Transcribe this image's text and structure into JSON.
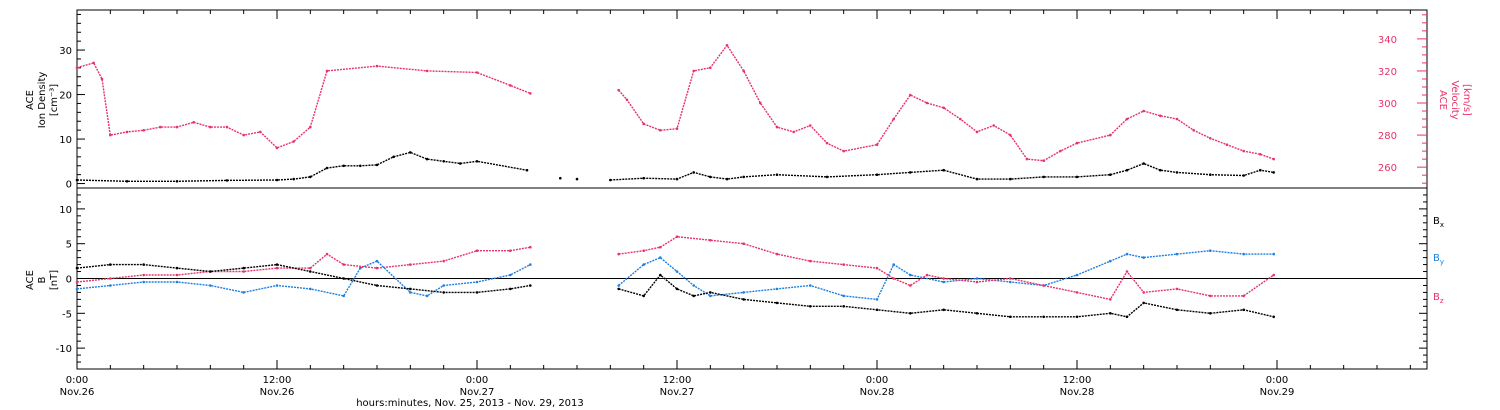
{
  "chart_data": [
    {
      "type": "scatter",
      "panel": "top",
      "ylabel_left": [
        "ACE",
        "Ion Density",
        "[cm⁻³]"
      ],
      "ylabel_right": [
        "ACE",
        "Velocity",
        "[km/s]"
      ],
      "ylim_left": [
        -1,
        39
      ],
      "ylim_right": [
        247,
        358
      ],
      "yticks_left": [
        0,
        10,
        20,
        30
      ],
      "yticks_right": [
        260,
        280,
        300,
        320,
        340
      ],
      "series": [
        {
          "axis": "left",
          "color": "#000000",
          "hours": [
            0,
            3,
            6,
            9,
            12,
            13,
            14,
            15,
            16,
            17,
            18,
            19,
            20,
            21,
            22,
            23,
            24,
            27,
            29,
            30,
            32,
            34,
            36,
            37,
            38,
            39,
            40,
            42,
            45,
            48,
            50,
            52,
            54,
            56,
            58,
            60,
            62,
            63,
            64,
            65,
            66,
            68,
            70,
            71,
            71.8
          ],
          "values": [
            0.8,
            0.5,
            0.5,
            0.7,
            0.8,
            1.0,
            1.5,
            3.5,
            4.0,
            4.0,
            4.2,
            6.0,
            7.0,
            5.5,
            5.0,
            4.5,
            5.0,
            3.0,
            1.2,
            1.0,
            0.8,
            1.2,
            1.0,
            2.5,
            1.5,
            1.0,
            1.5,
            2.0,
            1.5,
            2.0,
            2.5,
            3.0,
            1.0,
            1.0,
            1.5,
            1.5,
            2.0,
            3.0,
            4.5,
            3.0,
            2.5,
            2.0,
            1.8,
            3.0,
            2.5
          ]
        },
        {
          "axis": "right",
          "color": "#e8336a",
          "hours": [
            0,
            1,
            1.5,
            2,
            3,
            4,
            5,
            6,
            7,
            8,
            9,
            10,
            11,
            12,
            13,
            14,
            15,
            18,
            21,
            24,
            26,
            27.2,
            32.5,
            33,
            34,
            35,
            36,
            37,
            38,
            39,
            40,
            41,
            42,
            43,
            44,
            45,
            46,
            48,
            49,
            50,
            51,
            52,
            53,
            54,
            55,
            56,
            57,
            58,
            59,
            60,
            62,
            63,
            64,
            65,
            66,
            67,
            68,
            69,
            70,
            71,
            71.8
          ],
          "values": [
            322,
            325,
            315,
            280,
            282,
            283,
            285,
            285,
            288,
            285,
            285,
            280,
            282,
            272,
            276,
            285,
            320,
            323,
            320,
            319,
            311,
            306,
            308,
            302,
            287,
            283,
            284,
            320,
            322,
            336,
            320,
            300,
            285,
            282,
            286,
            275,
            270,
            274,
            290,
            305,
            300,
            297,
            290,
            282,
            286,
            280,
            265,
            264,
            270,
            275,
            280,
            290,
            295,
            292,
            290,
            283,
            278,
            274,
            270,
            268,
            265
          ]
        }
      ],
      "gaps_hours": [
        [
          27.2,
          32.5
        ]
      ]
    },
    {
      "type": "scatter",
      "panel": "bottom",
      "ylabel_left": [
        "ACE",
        "B",
        "[nT]"
      ],
      "ylim": [
        -13,
        13
      ],
      "yticks": [
        -10,
        -5,
        0,
        5,
        10
      ],
      "legend": [
        "Bx",
        "By",
        "Bz"
      ],
      "series": [
        {
          "name": "Bx",
          "color": "#000000",
          "hours": [
            0,
            2,
            4,
            6,
            8,
            10,
            12,
            14,
            16,
            18,
            20,
            22,
            24,
            26,
            27.2,
            32.5,
            34,
            35,
            36,
            37,
            38,
            40,
            42,
            44,
            46,
            48,
            50,
            52,
            54,
            56,
            58,
            60,
            62,
            63,
            64,
            66,
            68,
            70,
            71.8
          ],
          "values": [
            1.5,
            2.0,
            2.0,
            1.5,
            1.0,
            1.5,
            2.0,
            1.0,
            0.0,
            -1.0,
            -1.5,
            -2.0,
            -2.0,
            -1.5,
            -1.0,
            -1.5,
            -2.5,
            0.5,
            -1.5,
            -2.5,
            -2.0,
            -3.0,
            -3.5,
            -4.0,
            -4.0,
            -4.5,
            -5.0,
            -4.5,
            -5.0,
            -5.5,
            -5.5,
            -5.5,
            -5.0,
            -5.5,
            -3.5,
            -4.5,
            -5.0,
            -4.5,
            -5.5
          ]
        },
        {
          "name": "By",
          "color": "#1e7fe3",
          "hours": [
            0,
            2,
            4,
            6,
            8,
            10,
            12,
            14,
            16,
            17,
            18,
            20,
            21,
            22,
            24,
            26,
            27.2,
            32.5,
            34,
            35,
            36,
            37,
            38,
            40,
            42,
            44,
            46,
            48,
            49,
            50,
            52,
            54,
            56,
            58,
            60,
            62,
            63,
            64,
            66,
            68,
            70,
            71.8
          ],
          "values": [
            -1.5,
            -1.0,
            -0.5,
            -0.5,
            -1.0,
            -2.0,
            -1.0,
            -1.5,
            -2.5,
            1.5,
            2.5,
            -2.0,
            -2.5,
            -1.0,
            -0.5,
            0.5,
            2.0,
            -1.0,
            2.0,
            3.0,
            1.0,
            -1.0,
            -2.5,
            -2.0,
            -1.5,
            -1.0,
            -2.5,
            -3.0,
            2.0,
            0.5,
            -0.5,
            0.0,
            -0.5,
            -1.0,
            0.5,
            2.5,
            3.5,
            3.0,
            3.5,
            4.0,
            3.5,
            3.5
          ]
        },
        {
          "name": "Bz",
          "color": "#e8336a",
          "hours": [
            0,
            2,
            4,
            6,
            8,
            10,
            12,
            14,
            15,
            16,
            18,
            20,
            22,
            24,
            26,
            27.2,
            32.5,
            34,
            35,
            36,
            38,
            40,
            42,
            44,
            46,
            48,
            49,
            50,
            51,
            52,
            54,
            56,
            58,
            60,
            62,
            63,
            64,
            66,
            68,
            70,
            71.8
          ],
          "values": [
            -0.5,
            0.0,
            0.5,
            0.5,
            1.0,
            1.0,
            1.5,
            1.5,
            3.5,
            2.0,
            1.5,
            2.0,
            2.5,
            4.0,
            4.0,
            4.5,
            3.5,
            4.0,
            4.5,
            6.0,
            5.5,
            5.0,
            3.5,
            2.5,
            2.0,
            1.5,
            0.0,
            -1.0,
            0.5,
            0.0,
            -0.5,
            0.0,
            -1.0,
            -2.0,
            -3.0,
            1.0,
            -2.0,
            -1.5,
            -2.5,
            -2.5,
            0.5
          ]
        }
      ],
      "gaps_hours": [
        [
          27.2,
          32.5
        ]
      ]
    }
  ],
  "x_axis": {
    "xlim_hours": [
      0,
      81
    ],
    "major_ticks": [
      {
        "hours": 0,
        "time": "0:00",
        "date": "Nov.26"
      },
      {
        "hours": 12,
        "time": "12:00",
        "date": "Nov.26"
      },
      {
        "hours": 24,
        "time": "0:00",
        "date": "Nov.27"
      },
      {
        "hours": 36,
        "time": "12:00",
        "date": "Nov.27"
      },
      {
        "hours": 48,
        "time": "0:00",
        "date": "Nov.28"
      },
      {
        "hours": 60,
        "time": "12:00",
        "date": "Nov.28"
      },
      {
        "hours": 72,
        "time": "0:00",
        "date": "Nov.29"
      }
    ],
    "xlabel": "hours:minutes, Nov. 25, 2013 - Nov. 29, 2013"
  }
}
